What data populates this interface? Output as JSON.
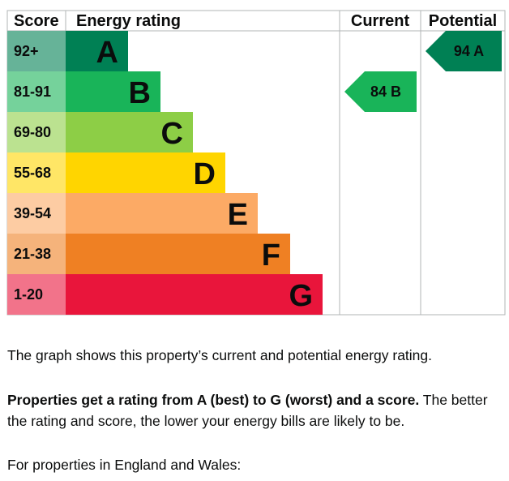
{
  "chart_data": {
    "type": "bar",
    "headers": {
      "score": "Score",
      "rating": "Energy rating",
      "current": "Current",
      "potential": "Potential"
    },
    "bands": [
      {
        "letter": "A",
        "range": "92+",
        "color": "#008054",
        "score_bg": "#66b398"
      },
      {
        "letter": "B",
        "range": "81-91",
        "color": "#19b459",
        "score_bg": "#75d29b"
      },
      {
        "letter": "C",
        "range": "69-80",
        "color": "#8dce46",
        "score_bg": "#bbe290"
      },
      {
        "letter": "D",
        "range": "55-68",
        "color": "#ffd500",
        "score_bg": "#ffe666"
      },
      {
        "letter": "E",
        "range": "39-54",
        "color": "#fcaa65",
        "score_bg": "#fdcca3"
      },
      {
        "letter": "F",
        "range": "21-38",
        "color": "#ef8023",
        "score_bg": "#f5b37b"
      },
      {
        "letter": "G",
        "range": "1-20",
        "color": "#e9153b",
        "score_bg": "#f2738a"
      }
    ],
    "current": {
      "score": 84,
      "letter": "B",
      "label": "84 B",
      "color": "#19b459"
    },
    "potential": {
      "score": 94,
      "letter": "A",
      "label": "94 A",
      "color": "#008054"
    }
  },
  "text": {
    "p1": "The graph shows this property’s current and potential energy rating.",
    "p2_bold": "Properties get a rating from A (best) to G (worst) and a score.",
    "p2_rest": " The better the rating and score, the lower your energy bills are likely to be.",
    "p3": "For properties in England and Wales:"
  }
}
